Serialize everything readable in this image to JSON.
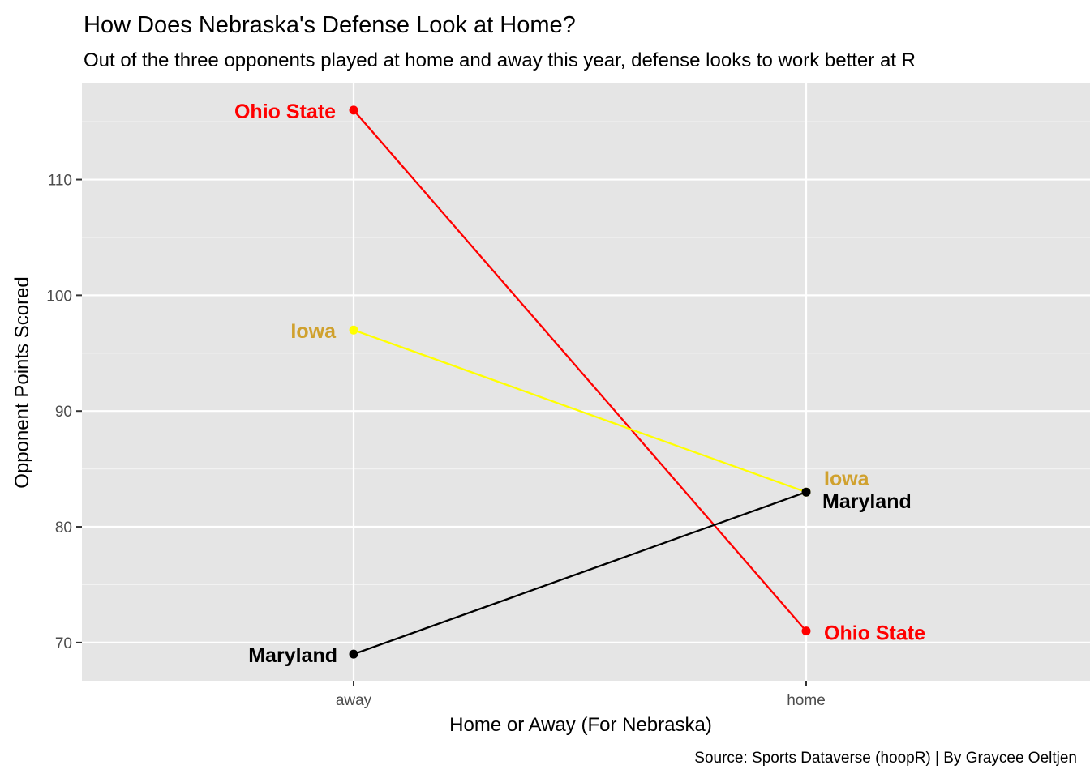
{
  "chart_data": {
    "type": "line",
    "title": "How Does Nebraska's Defense Look at Home?",
    "subtitle": "Out of the three opponents played at home and away this year, defense looks to work better at R",
    "xlabel": "Home or Away (For Nebraska)",
    "ylabel": "Opponent Points Scored",
    "caption": "Source: Sports Dataverse (hoopR) | By Graycee Oeltjen",
    "categories": [
      "away",
      "home"
    ],
    "ylim": [
      66.7,
      118.3
    ],
    "yticks": [
      70,
      80,
      90,
      100,
      110
    ],
    "grid": true,
    "background": "#e5e5e5",
    "series": [
      {
        "name": "Ohio State",
        "values": [
          116,
          71
        ],
        "line_color": "#ff0000",
        "point_colors": [
          "#ff0000",
          "#ff0000"
        ],
        "label_color": "#ff0000",
        "labels": [
          "Ohio State",
          "Ohio State"
        ]
      },
      {
        "name": "Iowa",
        "values": [
          97,
          83
        ],
        "line_color": "#ffff00",
        "point_colors": [
          "#ffff00",
          "#ffff00"
        ],
        "label_color": "#d0a12e",
        "labels": [
          "Iowa",
          "Iowa"
        ]
      },
      {
        "name": "Maryland",
        "values": [
          69,
          83
        ],
        "line_color": "#000000",
        "point_colors": [
          "#000000",
          "#000000"
        ],
        "label_color": "#000000",
        "labels": [
          "Maryland",
          "Maryland"
        ]
      }
    ]
  }
}
